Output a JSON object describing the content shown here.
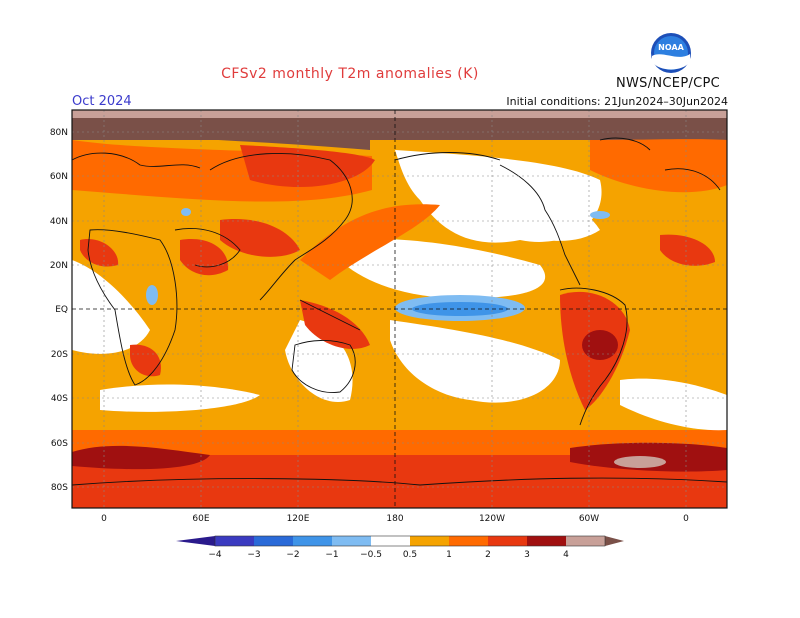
{
  "header": {
    "title": "CFSv2 monthly T2m anomalies (K)",
    "month": "Oct 2024",
    "initial_conditions": "Initial conditions: 21Jun2024–30Jun2024",
    "agency": "NWS/NCEP/CPC",
    "logo_text": "NOAA"
  },
  "map": {
    "lat_labels": [
      "80N",
      "60N",
      "40N",
      "20N",
      "EQ",
      "20S",
      "40S",
      "60S",
      "80S"
    ],
    "lon_labels": [
      "0",
      "60E",
      "120E",
      "180",
      "120W",
      "60W",
      "0"
    ]
  },
  "colorbar": {
    "labels": [
      "−4",
      "−3",
      "−2",
      "−1",
      "−0.5",
      "0.5",
      "1",
      "2",
      "3",
      "4"
    ],
    "colors": {
      "lt_minus4": "#2a1a8c",
      "minus4_3": "#3a3ac0",
      "minus3_2": "#2a6ad8",
      "minus2_1": "#3f94e8",
      "minus1_05": "#7fbcf2",
      "neutral": "#ffffff",
      "p05_1": "#f5a300",
      "p1_2": "#ff6a00",
      "p2_3": "#e83810",
      "p3_4": "#a01010",
      "p4_5": "#c8a098",
      "gt5": "#7a5048"
    }
  }
}
